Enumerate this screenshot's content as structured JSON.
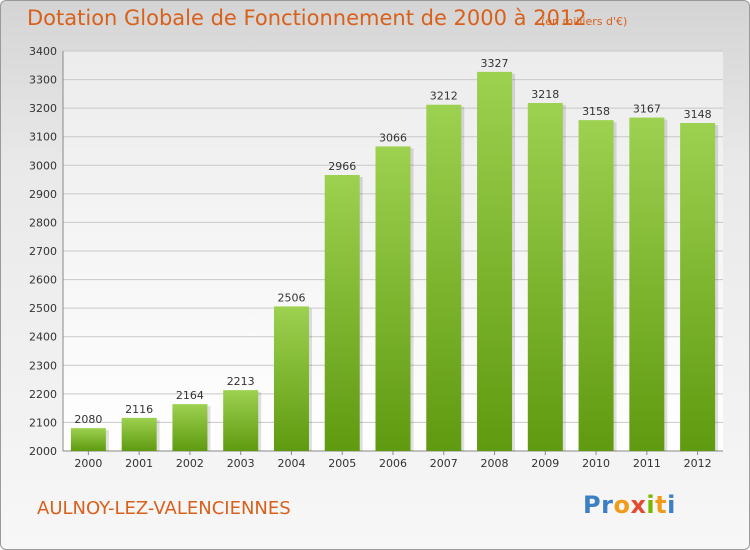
{
  "header": {
    "title": "Dotation Globale de Fonctionnement de 2000 à 2012",
    "unit": "(en milliers d'€)"
  },
  "footer": {
    "commune": "AULNOY-LEZ-VALENCIENNES",
    "logo": "Proxiti"
  },
  "colors": {
    "title": "#d9601a",
    "bar_top": "#9dd150",
    "bar_bottom": "#5f9a10",
    "grid": "#c8c8c8"
  },
  "chart_data": {
    "type": "bar",
    "title": "Dotation Globale de Fonctionnement de 2000 à 2012",
    "xlabel": "",
    "ylabel": "",
    "categories": [
      "2000",
      "2001",
      "2002",
      "2003",
      "2004",
      "2005",
      "2006",
      "2007",
      "2008",
      "2009",
      "2010",
      "2011",
      "2012"
    ],
    "values": [
      2080,
      2116,
      2164,
      2213,
      2506,
      2966,
      3066,
      3212,
      3327,
      3218,
      3158,
      3167,
      3148
    ],
    "ylim": [
      2000,
      3400
    ],
    "yticks": [
      2000,
      2100,
      2200,
      2300,
      2400,
      2500,
      2600,
      2700,
      2800,
      2900,
      3000,
      3100,
      3200,
      3300,
      3400
    ],
    "grid": true,
    "data_labels": true
  }
}
